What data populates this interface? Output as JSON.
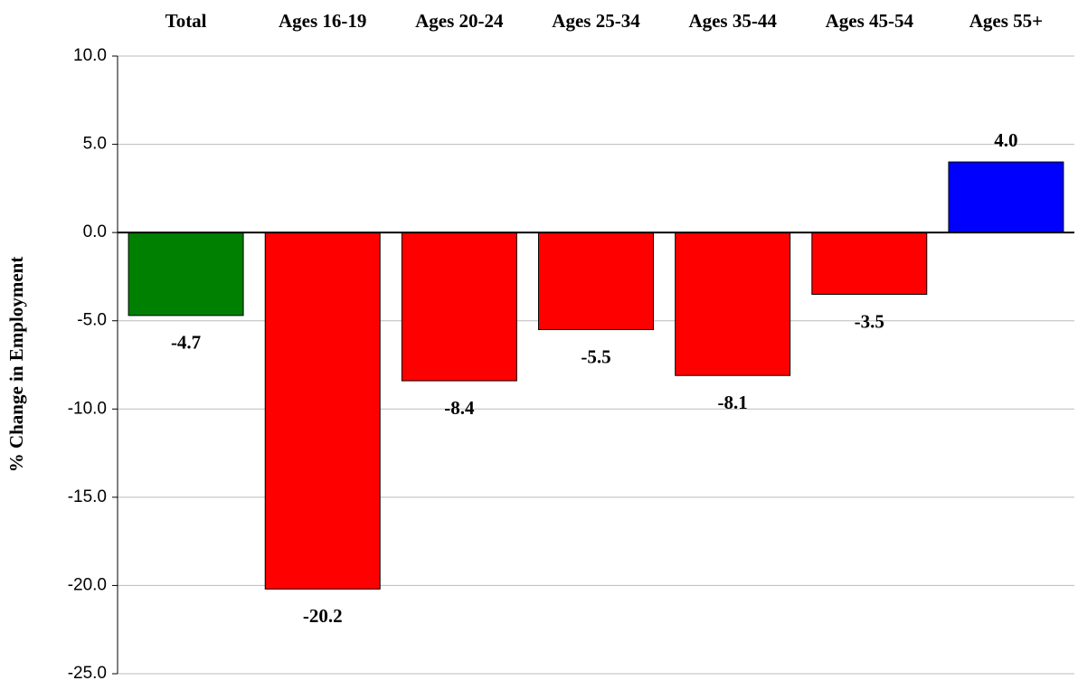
{
  "chart_data": {
    "type": "bar",
    "y_label": "% Change in Employment",
    "categories": [
      "Total",
      "Ages 16-19",
      "Ages 20-24",
      "Ages 25-34",
      "Ages 35-44",
      "Ages 45-54",
      "Ages 55+"
    ],
    "values": [
      -4.7,
      -20.2,
      -8.4,
      -5.5,
      -8.1,
      -3.5,
      4.0
    ],
    "value_labels": [
      "-4.7",
      "-20.2",
      "-8.4",
      "-5.5",
      "-8.1",
      "-3.5",
      "4.0"
    ],
    "colors": [
      "#008000",
      "#ff0000",
      "#ff0000",
      "#ff0000",
      "#ff0000",
      "#ff0000",
      "#0000ff"
    ],
    "ylim": [
      -25,
      10
    ],
    "yticks": [
      {
        "value": -25,
        "label": "-25.0"
      },
      {
        "value": -20,
        "label": "-20.0"
      },
      {
        "value": -15,
        "label": "-15.0"
      },
      {
        "value": -10,
        "label": "-10.0"
      },
      {
        "value": -5,
        "label": "-5.0"
      },
      {
        "value": 0,
        "label": "0.0"
      },
      {
        "value": 5,
        "label": "5.0"
      },
      {
        "value": 10,
        "label": "10.0"
      }
    ],
    "grid": true
  }
}
